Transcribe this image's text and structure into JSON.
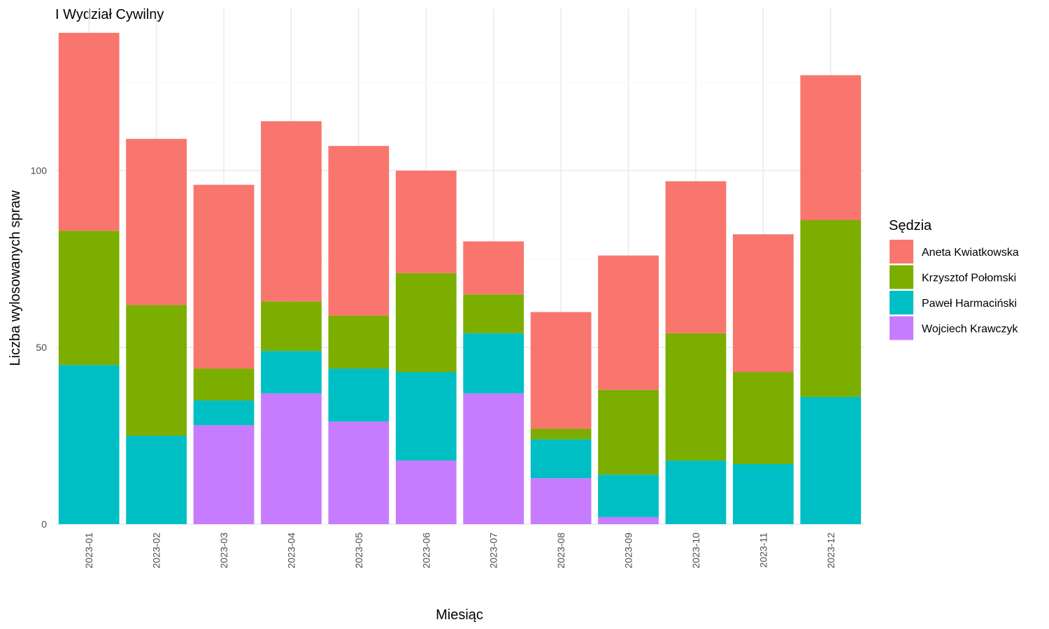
{
  "chart_data": {
    "type": "bar",
    "stacked": true,
    "title": "I Wydział Cywilny",
    "xlabel": "Miesiąc",
    "ylabel": "Liczba wylosowanych spraw",
    "ylim": [
      0,
      140
    ],
    "yticks": [
      0,
      50,
      100
    ],
    "grid": true,
    "legend_title": "Sędzia",
    "legend_position": "right",
    "categories": [
      "2023-01",
      "2023-02",
      "2023-03",
      "2023-04",
      "2023-05",
      "2023-06",
      "2023-07",
      "2023-08",
      "2023-09",
      "2023-10",
      "2023-11",
      "2023-12"
    ],
    "series": [
      {
        "name": "Wojciech Krawczyk",
        "color": "#C77CFF",
        "values": [
          0,
          0,
          28,
          37,
          29,
          18,
          37,
          13,
          2,
          0,
          0,
          0
        ]
      },
      {
        "name": "Paweł Harmaciński",
        "color": "#00BFC4",
        "values": [
          45,
          25,
          7,
          12,
          15,
          25,
          17,
          11,
          12,
          18,
          17,
          36
        ]
      },
      {
        "name": "Krzysztof Połomski",
        "color": "#7CAE00",
        "values": [
          38,
          37,
          9,
          14,
          15,
          28,
          11,
          3,
          24,
          36,
          26,
          50
        ]
      },
      {
        "name": "Aneta Kwiatkowska",
        "color": "#F8766D",
        "values": [
          56,
          47,
          52,
          51,
          48,
          29,
          15,
          33,
          38,
          43,
          39,
          41
        ]
      }
    ],
    "legend_order": [
      "Aneta Kwiatkowska",
      "Krzysztof Połomski",
      "Paweł Harmaciński",
      "Wojciech Krawczyk"
    ]
  }
}
